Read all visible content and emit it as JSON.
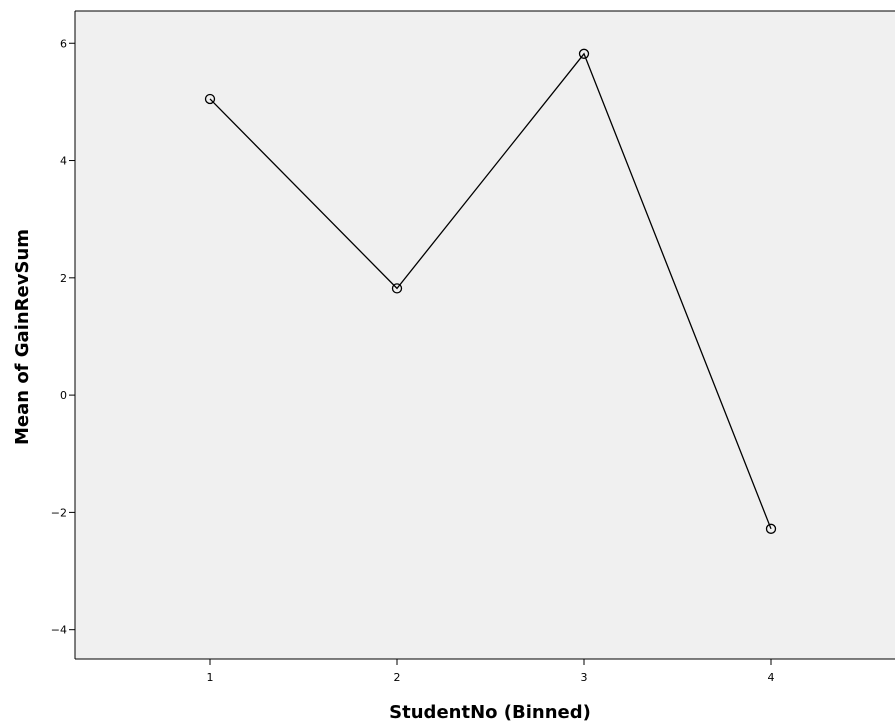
{
  "chart_data": {
    "type": "line",
    "xlabel": "StudentNo (Binned)",
    "ylabel": "Mean of GainRevSum",
    "categories": [
      "1",
      "2",
      "3",
      "4"
    ],
    "series": [
      {
        "values": [
          5.05,
          1.82,
          5.82,
          -2.28
        ]
      }
    ],
    "ylim": [
      -4.5,
      6.55
    ],
    "yticks": [
      "-4",
      "-2",
      "0",
      "2",
      "4",
      "6"
    ],
    "grid": false,
    "marker": "open-circle",
    "colors": {
      "plot_background": "#f0f0f0",
      "line": "#000000",
      "axis": "#000000"
    }
  }
}
